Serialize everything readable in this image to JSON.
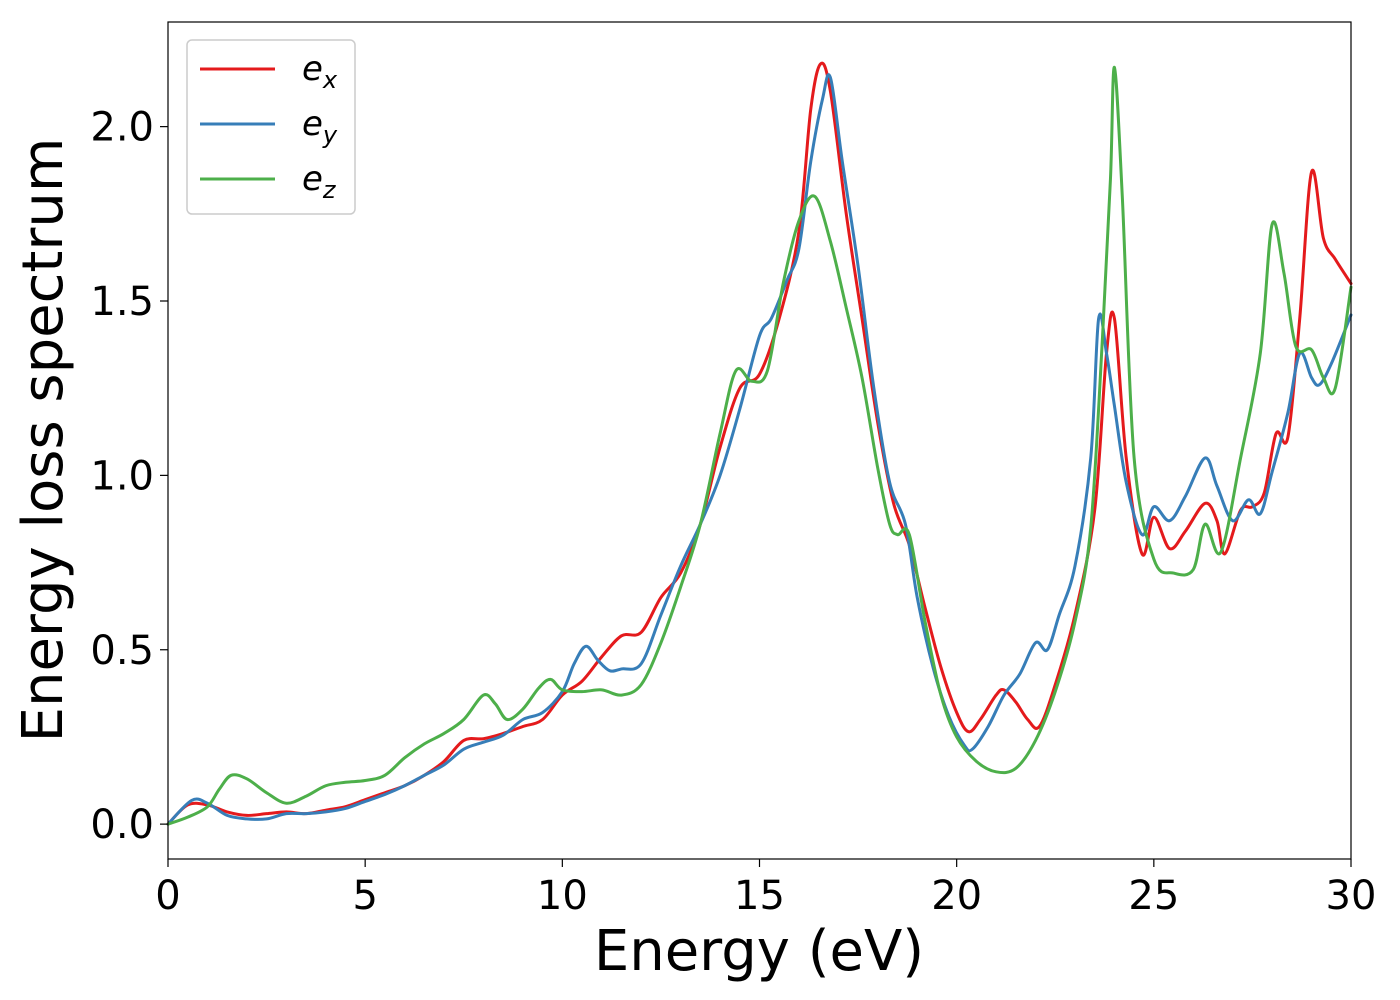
{
  "chart_data": {
    "type": "line",
    "xlabel": "Energy (eV)",
    "ylabel": "Energy loss spectrum",
    "xlim": [
      0,
      30
    ],
    "ylim": [
      -0.1,
      2.3
    ],
    "xticks": [
      0,
      5,
      10,
      15,
      20,
      25,
      30
    ],
    "xtick_labels": [
      "0",
      "5",
      "10",
      "15",
      "20",
      "25",
      "30"
    ],
    "yticks": [
      0.0,
      0.5,
      1.0,
      1.5,
      2.0
    ],
    "ytick_labels": [
      "0.0",
      "0.5",
      "1.0",
      "1.5",
      "2.0"
    ],
    "grid": false,
    "legend_position": "top-left",
    "series": [
      {
        "name": "e_x",
        "label_base": "e",
        "label_sub": "x",
        "color": "#e41a1c",
        "points": [
          [
            0,
            0
          ],
          [
            0.5,
            0.055
          ],
          [
            1,
            0.055
          ],
          [
            1.5,
            0.035
          ],
          [
            2,
            0.025
          ],
          [
            2.5,
            0.03
          ],
          [
            3,
            0.035
          ],
          [
            3.5,
            0.03
          ],
          [
            4,
            0.04
          ],
          [
            4.5,
            0.05
          ],
          [
            5,
            0.07
          ],
          [
            5.5,
            0.09
          ],
          [
            6,
            0.11
          ],
          [
            6.5,
            0.14
          ],
          [
            7,
            0.18
          ],
          [
            7.5,
            0.24
          ],
          [
            8,
            0.245
          ],
          [
            8.5,
            0.26
          ],
          [
            9,
            0.28
          ],
          [
            9.5,
            0.3
          ],
          [
            10,
            0.37
          ],
          [
            10.5,
            0.41
          ],
          [
            11,
            0.48
          ],
          [
            11.5,
            0.54
          ],
          [
            12,
            0.55
          ],
          [
            12.5,
            0.65
          ],
          [
            13,
            0.72
          ],
          [
            13.5,
            0.86
          ],
          [
            14,
            1.08
          ],
          [
            14.5,
            1.25
          ],
          [
            15,
            1.29
          ],
          [
            15.5,
            1.45
          ],
          [
            16,
            1.7
          ],
          [
            16.3,
            2.05
          ],
          [
            16.55,
            2.18
          ],
          [
            16.8,
            2.1
          ],
          [
            17.2,
            1.75
          ],
          [
            17.6,
            1.45
          ],
          [
            18,
            1.15
          ],
          [
            18.4,
            0.92
          ],
          [
            18.8,
            0.8
          ],
          [
            19.2,
            0.62
          ],
          [
            19.6,
            0.45
          ],
          [
            20,
            0.32
          ],
          [
            20.3,
            0.265
          ],
          [
            20.6,
            0.3
          ],
          [
            21,
            0.37
          ],
          [
            21.2,
            0.385
          ],
          [
            21.5,
            0.35
          ],
          [
            21.8,
            0.3
          ],
          [
            22.1,
            0.28
          ],
          [
            22.5,
            0.4
          ],
          [
            23,
            0.6
          ],
          [
            23.5,
            0.9
          ],
          [
            23.8,
            1.35
          ],
          [
            24,
            1.45
          ],
          [
            24.3,
            1.05
          ],
          [
            24.7,
            0.775
          ],
          [
            25,
            0.88
          ],
          [
            25.4,
            0.79
          ],
          [
            25.8,
            0.84
          ],
          [
            26.3,
            0.92
          ],
          [
            26.6,
            0.87
          ],
          [
            26.8,
            0.775
          ],
          [
            27.2,
            0.9
          ],
          [
            27.5,
            0.91
          ],
          [
            27.8,
            0.95
          ],
          [
            28.1,
            1.12
          ],
          [
            28.4,
            1.11
          ],
          [
            28.7,
            1.45
          ],
          [
            29,
            1.87
          ],
          [
            29.3,
            1.68
          ],
          [
            29.6,
            1.62
          ],
          [
            30,
            1.55
          ]
        ]
      },
      {
        "name": "e_y",
        "label_base": "e",
        "label_sub": "y",
        "color": "#377eb8",
        "points": [
          [
            0,
            0
          ],
          [
            0.6,
            0.068
          ],
          [
            1,
            0.06
          ],
          [
            1.5,
            0.025
          ],
          [
            2,
            0.015
          ],
          [
            2.5,
            0.015
          ],
          [
            3,
            0.03
          ],
          [
            3.5,
            0.03
          ],
          [
            4,
            0.035
          ],
          [
            4.5,
            0.045
          ],
          [
            5,
            0.065
          ],
          [
            5.5,
            0.085
          ],
          [
            6,
            0.11
          ],
          [
            6.5,
            0.14
          ],
          [
            7,
            0.17
          ],
          [
            7.5,
            0.215
          ],
          [
            8,
            0.235
          ],
          [
            8.5,
            0.255
          ],
          [
            9,
            0.3
          ],
          [
            9.5,
            0.32
          ],
          [
            10,
            0.38
          ],
          [
            10.3,
            0.46
          ],
          [
            10.6,
            0.51
          ],
          [
            10.9,
            0.47
          ],
          [
            11.2,
            0.44
          ],
          [
            11.5,
            0.445
          ],
          [
            12,
            0.46
          ],
          [
            12.5,
            0.6
          ],
          [
            13,
            0.74
          ],
          [
            13.5,
            0.86
          ],
          [
            14,
            1.0
          ],
          [
            14.5,
            1.19
          ],
          [
            15,
            1.4
          ],
          [
            15.3,
            1.45
          ],
          [
            15.7,
            1.56
          ],
          [
            16,
            1.65
          ],
          [
            16.3,
            1.9
          ],
          [
            16.6,
            2.08
          ],
          [
            16.8,
            2.14
          ],
          [
            17.1,
            1.9
          ],
          [
            17.5,
            1.6
          ],
          [
            17.9,
            1.25
          ],
          [
            18.3,
            0.98
          ],
          [
            18.7,
            0.86
          ],
          [
            19,
            0.65
          ],
          [
            19.4,
            0.45
          ],
          [
            19.8,
            0.31
          ],
          [
            20.2,
            0.225
          ],
          [
            20.4,
            0.215
          ],
          [
            20.8,
            0.28
          ],
          [
            21.2,
            0.37
          ],
          [
            21.6,
            0.43
          ],
          [
            22,
            0.52
          ],
          [
            22.3,
            0.5
          ],
          [
            22.6,
            0.6
          ],
          [
            23,
            0.74
          ],
          [
            23.4,
            1.05
          ],
          [
            23.6,
            1.45
          ],
          [
            23.8,
            1.35
          ],
          [
            24,
            1.2
          ],
          [
            24.3,
            0.98
          ],
          [
            24.7,
            0.83
          ],
          [
            25,
            0.91
          ],
          [
            25.4,
            0.87
          ],
          [
            25.8,
            0.94
          ],
          [
            26.3,
            1.05
          ],
          [
            26.6,
            0.97
          ],
          [
            27,
            0.87
          ],
          [
            27.4,
            0.93
          ],
          [
            27.7,
            0.89
          ],
          [
            28,
            1.01
          ],
          [
            28.4,
            1.18
          ],
          [
            28.7,
            1.35
          ],
          [
            29,
            1.28
          ],
          [
            29.2,
            1.26
          ],
          [
            29.5,
            1.32
          ],
          [
            30,
            1.46
          ]
        ]
      },
      {
        "name": "e_z",
        "label_base": "e",
        "label_sub": "z",
        "color": "#4daf4a",
        "points": [
          [
            0,
            0
          ],
          [
            0.5,
            0.02
          ],
          [
            1,
            0.05
          ],
          [
            1.3,
            0.1
          ],
          [
            1.6,
            0.14
          ],
          [
            2,
            0.13
          ],
          [
            2.5,
            0.09
          ],
          [
            3,
            0.06
          ],
          [
            3.5,
            0.08
          ],
          [
            4,
            0.11
          ],
          [
            4.5,
            0.12
          ],
          [
            5,
            0.125
          ],
          [
            5.5,
            0.14
          ],
          [
            6,
            0.19
          ],
          [
            6.5,
            0.23
          ],
          [
            7,
            0.26
          ],
          [
            7.5,
            0.3
          ],
          [
            8,
            0.37
          ],
          [
            8.3,
            0.345
          ],
          [
            8.6,
            0.3
          ],
          [
            9,
            0.33
          ],
          [
            9.4,
            0.39
          ],
          [
            9.7,
            0.415
          ],
          [
            10,
            0.385
          ],
          [
            10.5,
            0.38
          ],
          [
            11,
            0.385
          ],
          [
            11.5,
            0.37
          ],
          [
            12,
            0.4
          ],
          [
            12.5,
            0.52
          ],
          [
            13,
            0.68
          ],
          [
            13.5,
            0.86
          ],
          [
            14,
            1.12
          ],
          [
            14.4,
            1.3
          ],
          [
            14.8,
            1.27
          ],
          [
            15.2,
            1.3
          ],
          [
            15.6,
            1.55
          ],
          [
            16,
            1.73
          ],
          [
            16.4,
            1.8
          ],
          [
            16.8,
            1.67
          ],
          [
            17.2,
            1.48
          ],
          [
            17.6,
            1.28
          ],
          [
            18,
            1.02
          ],
          [
            18.3,
            0.86
          ],
          [
            18.5,
            0.83
          ],
          [
            18.8,
            0.83
          ],
          [
            19.2,
            0.58
          ],
          [
            19.6,
            0.37
          ],
          [
            20,
            0.25
          ],
          [
            20.5,
            0.18
          ],
          [
            21,
            0.15
          ],
          [
            21.5,
            0.16
          ],
          [
            22,
            0.24
          ],
          [
            22.5,
            0.38
          ],
          [
            23,
            0.58
          ],
          [
            23.4,
            0.85
          ],
          [
            23.7,
            1.4
          ],
          [
            23.9,
            1.85
          ],
          [
            24,
            2.17
          ],
          [
            24.2,
            1.8
          ],
          [
            24.5,
            1.05
          ],
          [
            25,
            0.76
          ],
          [
            25.5,
            0.72
          ],
          [
            26,
            0.73
          ],
          [
            26.3,
            0.86
          ],
          [
            26.7,
            0.78
          ],
          [
            27.2,
            1.05
          ],
          [
            27.7,
            1.35
          ],
          [
            28,
            1.72
          ],
          [
            28.3,
            1.58
          ],
          [
            28.6,
            1.37
          ],
          [
            29,
            1.36
          ],
          [
            29.3,
            1.28
          ],
          [
            29.6,
            1.25
          ],
          [
            30,
            1.54
          ]
        ]
      }
    ]
  }
}
